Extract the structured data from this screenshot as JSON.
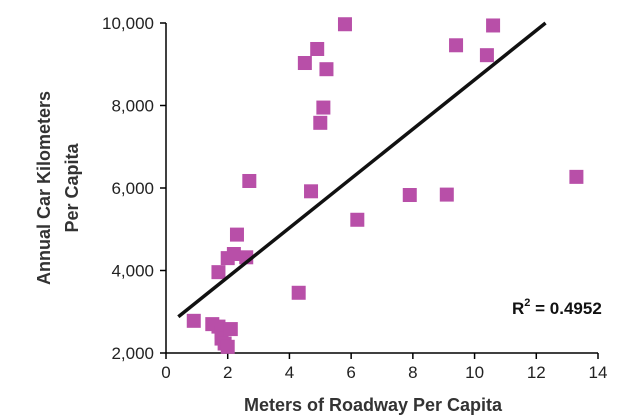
{
  "chart_data": {
    "type": "scatter",
    "xlabel": "Meters of Roadway Per Capita",
    "ylabel_lines": [
      "Annual Car Kilometers",
      "Per Capita"
    ],
    "xlim": [
      0,
      14
    ],
    "ylim": [
      2000,
      10000
    ],
    "x_ticks": [
      {
        "value": 0,
        "label": "0"
      },
      {
        "value": 2,
        "label": "2"
      },
      {
        "value": 4,
        "label": "4"
      },
      {
        "value": 6,
        "label": "6"
      },
      {
        "value": 8,
        "label": "8"
      },
      {
        "value": 10,
        "label": "10"
      },
      {
        "value": 12,
        "label": "12"
      },
      {
        "value": 14,
        "label": "14"
      }
    ],
    "y_ticks": [
      {
        "value": 2000,
        "label": "2,000"
      },
      {
        "value": 4000,
        "label": "4,000"
      },
      {
        "value": 6000,
        "label": "6,000"
      },
      {
        "value": 8000,
        "label": "8,000"
      },
      {
        "value": 10000,
        "label": "10,000"
      }
    ],
    "points": [
      {
        "x": 0.9,
        "y": 2780
      },
      {
        "x": 1.5,
        "y": 2700
      },
      {
        "x": 1.7,
        "y": 2640
      },
      {
        "x": 1.8,
        "y": 2500
      },
      {
        "x": 1.8,
        "y": 2350
      },
      {
        "x": 1.9,
        "y": 2230
      },
      {
        "x": 2.0,
        "y": 2150
      },
      {
        "x": 2.1,
        "y": 2580
      },
      {
        "x": 1.7,
        "y": 3960
      },
      {
        "x": 2.0,
        "y": 4300
      },
      {
        "x": 2.2,
        "y": 4400
      },
      {
        "x": 2.6,
        "y": 4320
      },
      {
        "x": 2.3,
        "y": 4870
      },
      {
        "x": 2.7,
        "y": 6170
      },
      {
        "x": 4.3,
        "y": 3460
      },
      {
        "x": 4.5,
        "y": 9030
      },
      {
        "x": 4.7,
        "y": 5920
      },
      {
        "x": 4.9,
        "y": 9370
      },
      {
        "x": 5.0,
        "y": 7580
      },
      {
        "x": 5.1,
        "y": 7950
      },
      {
        "x": 5.2,
        "y": 8880
      },
      {
        "x": 5.8,
        "y": 9970
      },
      {
        "x": 6.2,
        "y": 5230
      },
      {
        "x": 7.9,
        "y": 5830
      },
      {
        "x": 9.1,
        "y": 5840
      },
      {
        "x": 9.4,
        "y": 9460
      },
      {
        "x": 10.4,
        "y": 9220
      },
      {
        "x": 10.6,
        "y": 9940
      },
      {
        "x": 13.3,
        "y": 6270
      }
    ],
    "trendline": {
      "type": "linear",
      "from": {
        "x": 0.4,
        "y": 2880
      },
      "to": {
        "x": 12.3,
        "y": 10000
      }
    },
    "annotations": {
      "r2_label": "R",
      "r2_exponent": "2",
      "r2_value": " = 0.4952"
    },
    "marker_color": "#b84fa8",
    "line_color": "#111111",
    "grid": false
  }
}
